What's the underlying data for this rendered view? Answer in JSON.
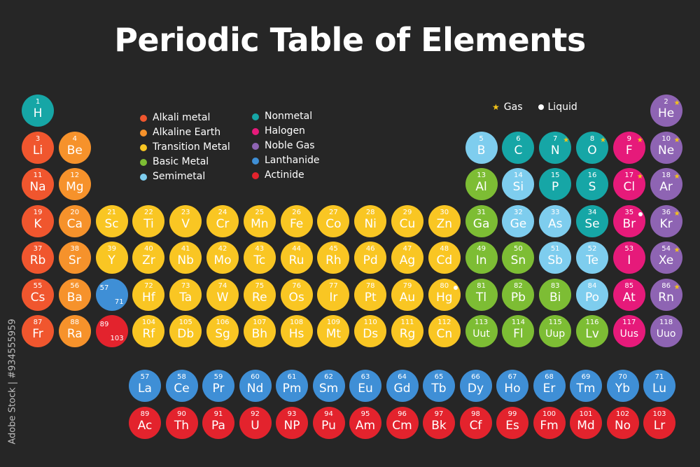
{
  "title": "Periodic Table of Elements",
  "colors": {
    "background": "#262626",
    "alkali": "#f0562e",
    "alkaline": "#f6922b",
    "transition": "#f9c623",
    "basic": "#7dbd34",
    "semimetal": "#7ecdee",
    "nonmetal": "#16a6a6",
    "halogen": "#e61a7a",
    "noble": "#8e64b3",
    "lanthanide": "#3f8fd6",
    "actinide": "#e3232d",
    "gas_marker": "#f5c518",
    "liquid_marker": "#ffffff"
  },
  "legend": {
    "column1": [
      {
        "label": "Alkali metal",
        "category": "alkali"
      },
      {
        "label": "Alkaline Earth",
        "category": "alkaline"
      },
      {
        "label": "Transition Metal",
        "category": "transition"
      },
      {
        "label": "Basic Metal",
        "category": "basic"
      },
      {
        "label": "Semimetal",
        "category": "semimetal"
      }
    ],
    "column2": [
      {
        "label": "Nonmetal",
        "category": "nonmetal"
      },
      {
        "label": "Halogen",
        "category": "halogen"
      },
      {
        "label": "Noble Gas",
        "category": "noble"
      },
      {
        "label": "Lanthanide",
        "category": "lanthanide"
      },
      {
        "label": "Actinide",
        "category": "actinide"
      }
    ]
  },
  "state_legend": {
    "gas": "Gas",
    "liquid": "Liquid",
    "gas_icon": "star-icon",
    "liquid_icon": "dot-icon"
  },
  "stock_id": "Adobe Stock | #934555959",
  "elements": [
    {
      "n": "1",
      "s": "H",
      "g": 1,
      "p": 1,
      "c": "nonmetal"
    },
    {
      "n": "2",
      "s": "He",
      "g": 18,
      "p": 1,
      "c": "noble",
      "m": "gas"
    },
    {
      "n": "3",
      "s": "Li",
      "g": 1,
      "p": 2,
      "c": "alkali"
    },
    {
      "n": "4",
      "s": "Be",
      "g": 2,
      "p": 2,
      "c": "alkaline"
    },
    {
      "n": "5",
      "s": "B",
      "g": 13,
      "p": 2,
      "c": "semimetal"
    },
    {
      "n": "6",
      "s": "C",
      "g": 14,
      "p": 2,
      "c": "nonmetal"
    },
    {
      "n": "7",
      "s": "N",
      "g": 15,
      "p": 2,
      "c": "nonmetal",
      "m": "gas"
    },
    {
      "n": "8",
      "s": "O",
      "g": 16,
      "p": 2,
      "c": "nonmetal",
      "m": "gas"
    },
    {
      "n": "9",
      "s": "F",
      "g": 17,
      "p": 2,
      "c": "halogen",
      "m": "gas"
    },
    {
      "n": "10",
      "s": "Ne",
      "g": 18,
      "p": 2,
      "c": "noble",
      "m": "gas"
    },
    {
      "n": "11",
      "s": "Na",
      "g": 1,
      "p": 3,
      "c": "alkali"
    },
    {
      "n": "12",
      "s": "Mg",
      "g": 2,
      "p": 3,
      "c": "alkaline"
    },
    {
      "n": "13",
      "s": "Al",
      "g": 13,
      "p": 3,
      "c": "basic"
    },
    {
      "n": "14",
      "s": "Si",
      "g": 14,
      "p": 3,
      "c": "semimetal"
    },
    {
      "n": "15",
      "s": "P",
      "g": 15,
      "p": 3,
      "c": "nonmetal"
    },
    {
      "n": "16",
      "s": "S",
      "g": 16,
      "p": 3,
      "c": "nonmetal"
    },
    {
      "n": "17",
      "s": "Cl",
      "g": 17,
      "p": 3,
      "c": "halogen",
      "m": "gas"
    },
    {
      "n": "18",
      "s": "Ar",
      "g": 18,
      "p": 3,
      "c": "noble",
      "m": "gas"
    },
    {
      "n": "19",
      "s": "K",
      "g": 1,
      "p": 4,
      "c": "alkali"
    },
    {
      "n": "20",
      "s": "Ca",
      "g": 2,
      "p": 4,
      "c": "alkaline"
    },
    {
      "n": "21",
      "s": "Sc",
      "g": 3,
      "p": 4,
      "c": "transition"
    },
    {
      "n": "22",
      "s": "Ti",
      "g": 4,
      "p": 4,
      "c": "transition"
    },
    {
      "n": "23",
      "s": "V",
      "g": 5,
      "p": 4,
      "c": "transition"
    },
    {
      "n": "24",
      "s": "Cr",
      "g": 6,
      "p": 4,
      "c": "transition"
    },
    {
      "n": "25",
      "s": "Mn",
      "g": 7,
      "p": 4,
      "c": "transition"
    },
    {
      "n": "26",
      "s": "Fe",
      "g": 8,
      "p": 4,
      "c": "transition"
    },
    {
      "n": "27",
      "s": "Co",
      "g": 9,
      "p": 4,
      "c": "transition"
    },
    {
      "n": "28",
      "s": "Ni",
      "g": 10,
      "p": 4,
      "c": "transition"
    },
    {
      "n": "29",
      "s": "Cu",
      "g": 11,
      "p": 4,
      "c": "transition"
    },
    {
      "n": "30",
      "s": "Zn",
      "g": 12,
      "p": 4,
      "c": "transition"
    },
    {
      "n": "31",
      "s": "Ga",
      "g": 13,
      "p": 4,
      "c": "basic"
    },
    {
      "n": "32",
      "s": "Ge",
      "g": 14,
      "p": 4,
      "c": "semimetal"
    },
    {
      "n": "33",
      "s": "As",
      "g": 15,
      "p": 4,
      "c": "semimetal"
    },
    {
      "n": "34",
      "s": "Se",
      "g": 16,
      "p": 4,
      "c": "nonmetal"
    },
    {
      "n": "35",
      "s": "Br",
      "g": 17,
      "p": 4,
      "c": "halogen",
      "m": "liquid"
    },
    {
      "n": "36",
      "s": "Kr",
      "g": 18,
      "p": 4,
      "c": "noble",
      "m": "gas"
    },
    {
      "n": "37",
      "s": "Rb",
      "g": 1,
      "p": 5,
      "c": "alkali"
    },
    {
      "n": "38",
      "s": "Sr",
      "g": 2,
      "p": 5,
      "c": "alkaline"
    },
    {
      "n": "39",
      "s": "Y",
      "g": 3,
      "p": 5,
      "c": "transition"
    },
    {
      "n": "40",
      "s": "Zr",
      "g": 4,
      "p": 5,
      "c": "transition"
    },
    {
      "n": "41",
      "s": "Nb",
      "g": 5,
      "p": 5,
      "c": "transition"
    },
    {
      "n": "42",
      "s": "Mo",
      "g": 6,
      "p": 5,
      "c": "transition"
    },
    {
      "n": "43",
      "s": "Tc",
      "g": 7,
      "p": 5,
      "c": "transition"
    },
    {
      "n": "44",
      "s": "Ru",
      "g": 8,
      "p": 5,
      "c": "transition"
    },
    {
      "n": "45",
      "s": "Rh",
      "g": 9,
      "p": 5,
      "c": "transition"
    },
    {
      "n": "46",
      "s": "Pd",
      "g": 10,
      "p": 5,
      "c": "transition"
    },
    {
      "n": "47",
      "s": "Ag",
      "g": 11,
      "p": 5,
      "c": "transition"
    },
    {
      "n": "48",
      "s": "Cd",
      "g": 12,
      "p": 5,
      "c": "transition"
    },
    {
      "n": "49",
      "s": "In",
      "g": 13,
      "p": 5,
      "c": "basic"
    },
    {
      "n": "50",
      "s": "Sn",
      "g": 14,
      "p": 5,
      "c": "basic"
    },
    {
      "n": "51",
      "s": "Sb",
      "g": 15,
      "p": 5,
      "c": "semimetal"
    },
    {
      "n": "52",
      "s": "Te",
      "g": 16,
      "p": 5,
      "c": "semimetal"
    },
    {
      "n": "53",
      "s": "I",
      "g": 17,
      "p": 5,
      "c": "halogen"
    },
    {
      "n": "54",
      "s": "Xe",
      "g": 18,
      "p": 5,
      "c": "noble",
      "m": "gas"
    },
    {
      "n": "55",
      "s": "Cs",
      "g": 1,
      "p": 6,
      "c": "alkali"
    },
    {
      "n": "56",
      "s": "Ba",
      "g": 2,
      "p": 6,
      "c": "alkaline"
    },
    {
      "n": "57",
      "n2": "71",
      "s": "",
      "g": 3,
      "p": 6,
      "c": "lanthanide"
    },
    {
      "n": "72",
      "s": "Hf",
      "g": 4,
      "p": 6,
      "c": "transition"
    },
    {
      "n": "73",
      "s": "Ta",
      "g": 5,
      "p": 6,
      "c": "transition"
    },
    {
      "n": "74",
      "s": "W",
      "g": 6,
      "p": 6,
      "c": "transition"
    },
    {
      "n": "75",
      "s": "Re",
      "g": 7,
      "p": 6,
      "c": "transition"
    },
    {
      "n": "76",
      "s": "Os",
      "g": 8,
      "p": 6,
      "c": "transition"
    },
    {
      "n": "77",
      "s": "Ir",
      "g": 9,
      "p": 6,
      "c": "transition"
    },
    {
      "n": "78",
      "s": "Pt",
      "g": 10,
      "p": 6,
      "c": "transition"
    },
    {
      "n": "79",
      "s": "Au",
      "g": 11,
      "p": 6,
      "c": "transition"
    },
    {
      "n": "80",
      "s": "Hg",
      "g": 12,
      "p": 6,
      "c": "transition",
      "m": "liquid"
    },
    {
      "n": "81",
      "s": "Tl",
      "g": 13,
      "p": 6,
      "c": "basic"
    },
    {
      "n": "82",
      "s": "Pb",
      "g": 14,
      "p": 6,
      "c": "basic"
    },
    {
      "n": "83",
      "s": "Bi",
      "g": 15,
      "p": 6,
      "c": "basic"
    },
    {
      "n": "84",
      "s": "Po",
      "g": 16,
      "p": 6,
      "c": "semimetal"
    },
    {
      "n": "85",
      "s": "At",
      "g": 17,
      "p": 6,
      "c": "halogen"
    },
    {
      "n": "86",
      "s": "Rn",
      "g": 18,
      "p": 6,
      "c": "noble",
      "m": "gas"
    },
    {
      "n": "87",
      "s": "Fr",
      "g": 1,
      "p": 7,
      "c": "alkali"
    },
    {
      "n": "88",
      "s": "Ra",
      "g": 2,
      "p": 7,
      "c": "alkaline"
    },
    {
      "n": "89",
      "n2": "103",
      "s": "",
      "g": 3,
      "p": 7,
      "c": "actinide"
    },
    {
      "n": "104",
      "s": "Rf",
      "g": 4,
      "p": 7,
      "c": "transition"
    },
    {
      "n": "105",
      "s": "Db",
      "g": 5,
      "p": 7,
      "c": "transition"
    },
    {
      "n": "106",
      "s": "Sg",
      "g": 6,
      "p": 7,
      "c": "transition"
    },
    {
      "n": "107",
      "s": "Bh",
      "g": 7,
      "p": 7,
      "c": "transition"
    },
    {
      "n": "108",
      "s": "Hs",
      "g": 8,
      "p": 7,
      "c": "transition"
    },
    {
      "n": "109",
      "s": "Mt",
      "g": 9,
      "p": 7,
      "c": "transition"
    },
    {
      "n": "110",
      "s": "Ds",
      "g": 10,
      "p": 7,
      "c": "transition"
    },
    {
      "n": "111",
      "s": "Rg",
      "g": 11,
      "p": 7,
      "c": "transition"
    },
    {
      "n": "112",
      "s": "Cn",
      "g": 12,
      "p": 7,
      "c": "transition"
    },
    {
      "n": "113",
      "s": "Uut",
      "g": 13,
      "p": 7,
      "c": "basic"
    },
    {
      "n": "114",
      "s": "Fl",
      "g": 14,
      "p": 7,
      "c": "basic"
    },
    {
      "n": "115",
      "s": "Uup",
      "g": 15,
      "p": 7,
      "c": "basic"
    },
    {
      "n": "116",
      "s": "Lv",
      "g": 16,
      "p": 7,
      "c": "basic"
    },
    {
      "n": "117",
      "s": "Uus",
      "g": 17,
      "p": 7,
      "c": "halogen"
    },
    {
      "n": "118",
      "s": "Uuo",
      "g": 18,
      "p": 7,
      "c": "noble"
    }
  ],
  "lanthanides": [
    {
      "n": "57",
      "s": "La"
    },
    {
      "n": "58",
      "s": "Ce"
    },
    {
      "n": "59",
      "s": "Pr"
    },
    {
      "n": "60",
      "s": "Nd"
    },
    {
      "n": "61",
      "s": "Pm"
    },
    {
      "n": "62",
      "s": "Sm"
    },
    {
      "n": "63",
      "s": "Eu"
    },
    {
      "n": "64",
      "s": "Gd"
    },
    {
      "n": "65",
      "s": "Tb"
    },
    {
      "n": "66",
      "s": "Dy"
    },
    {
      "n": "67",
      "s": "Ho"
    },
    {
      "n": "68",
      "s": "Er"
    },
    {
      "n": "69",
      "s": "Tm"
    },
    {
      "n": "70",
      "s": "Yb"
    },
    {
      "n": "71",
      "s": "Lu"
    }
  ],
  "actinides": [
    {
      "n": "89",
      "s": "Ac"
    },
    {
      "n": "90",
      "s": "Th"
    },
    {
      "n": "91",
      "s": "Pa"
    },
    {
      "n": "92",
      "s": "U"
    },
    {
      "n": "93",
      "s": "NP"
    },
    {
      "n": "94",
      "s": "Pu"
    },
    {
      "n": "95",
      "s": "Am"
    },
    {
      "n": "96",
      "s": "Cm"
    },
    {
      "n": "97",
      "s": "Bk"
    },
    {
      "n": "98",
      "s": "Cf"
    },
    {
      "n": "99",
      "s": "Es"
    },
    {
      "n": "100",
      "s": "Fm"
    },
    {
      "n": "101",
      "s": "Md"
    },
    {
      "n": "102",
      "s": "No"
    },
    {
      "n": "103",
      "s": "Lr"
    }
  ]
}
